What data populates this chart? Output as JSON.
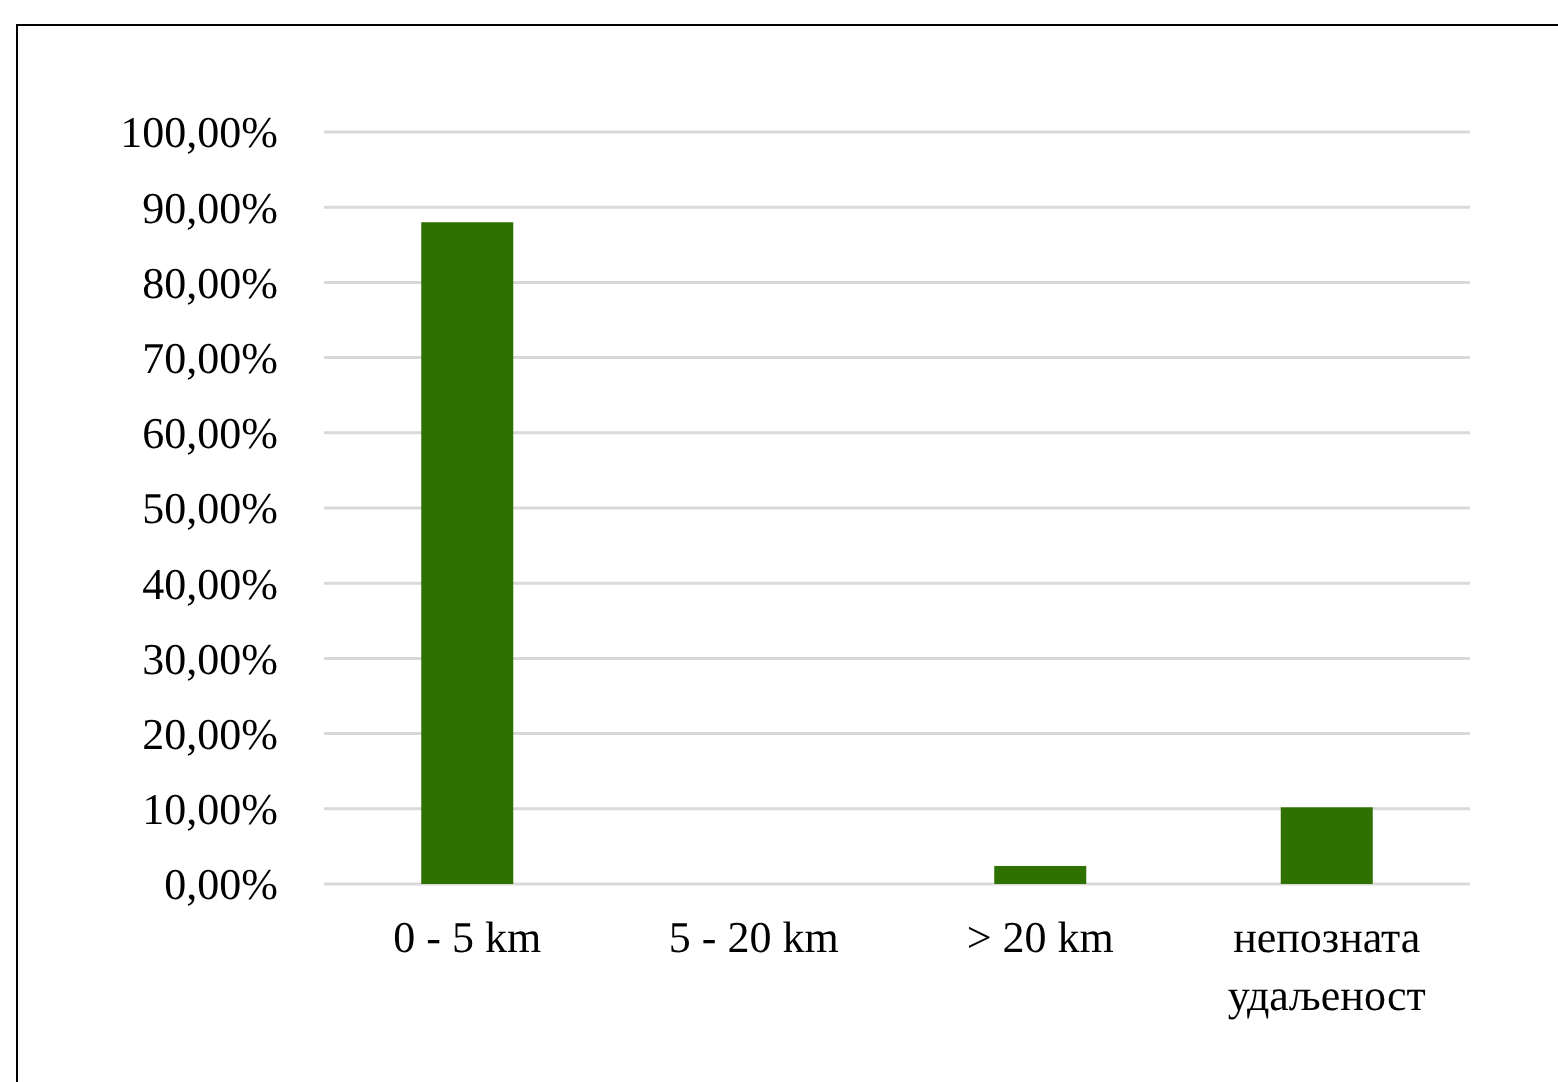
{
  "chart_data": {
    "type": "bar",
    "categories": [
      "0 - 5 km",
      "5 - 20 km",
      "> 20 km",
      "непозната удаљеност"
    ],
    "values": [
      88,
      0,
      2.4,
      10.2
    ],
    "color": "#2e7100",
    "ylim": [
      0,
      100
    ],
    "yticks": [
      {
        "value": 0,
        "label": "0,00%"
      },
      {
        "value": 10,
        "label": "10,00%"
      },
      {
        "value": 20,
        "label": "20,00%"
      },
      {
        "value": 30,
        "label": "30,00%"
      },
      {
        "value": 40,
        "label": "40,00%"
      },
      {
        "value": 50,
        "label": "50,00%"
      },
      {
        "value": 60,
        "label": "60,00%"
      },
      {
        "value": 70,
        "label": "70,00%"
      },
      {
        "value": 80,
        "label": "80,00%"
      },
      {
        "value": 90,
        "label": "90,00%"
      },
      {
        "value": 100,
        "label": "100,00%"
      }
    ],
    "grid": "y"
  }
}
